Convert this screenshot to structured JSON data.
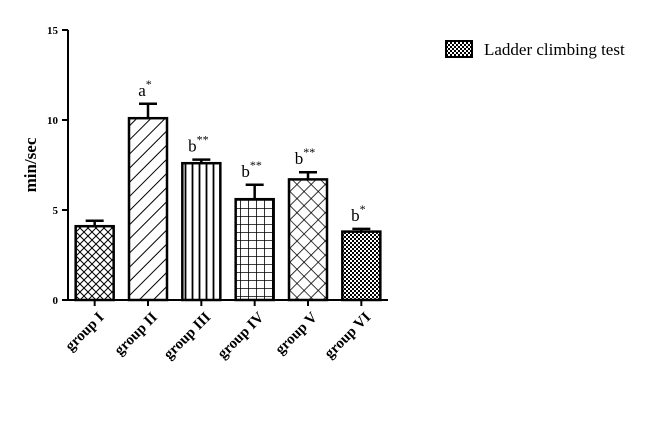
{
  "chart_data": {
    "type": "bar",
    "title": "",
    "xlabel": "",
    "ylabel": "min/sec",
    "ylim": [
      0,
      15
    ],
    "yticks": [
      0,
      5,
      10,
      15
    ],
    "legend": {
      "label": "Ladder climbing test",
      "position": "top-right"
    },
    "grid": false,
    "categories": [
      "group I",
      "group II",
      "group III",
      "group IV",
      "group V",
      "group VI"
    ],
    "series": [
      {
        "name": "Ladder climbing test",
        "values": [
          4.1,
          10.1,
          7.6,
          5.6,
          6.7,
          3.8
        ],
        "errors": [
          0.3,
          0.8,
          0.2,
          0.8,
          0.4,
          0.15
        ]
      }
    ],
    "annotations": [
      {
        "letter": "",
        "stars": ""
      },
      {
        "letter": "a",
        "stars": "*"
      },
      {
        "letter": "b",
        "stars": "**"
      },
      {
        "letter": "b",
        "stars": "**"
      },
      {
        "letter": "b",
        "stars": "**"
      },
      {
        "letter": "b",
        "stars": "*"
      }
    ],
    "patterns": [
      "diamond-lattice",
      "diagonal-stripes",
      "vertical-stripes",
      "square-grid",
      "diagonal-crosshatch",
      "checkerboard"
    ]
  }
}
